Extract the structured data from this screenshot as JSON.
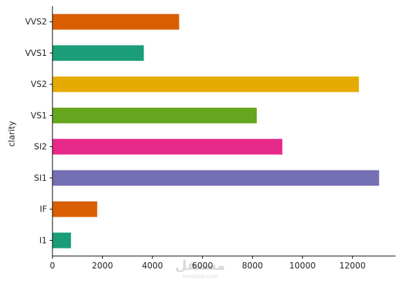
{
  "chart_data": {
    "type": "bar",
    "orientation": "horizontal",
    "categories": [
      "I1",
      "IF",
      "SI1",
      "SI2",
      "VS1",
      "VS2",
      "VVS1",
      "VVS2"
    ],
    "values": [
      741,
      1790,
      13065,
      9194,
      8171,
      12258,
      3655,
      5066
    ],
    "colors": [
      "#1b9e77",
      "#d95f02",
      "#7570b3",
      "#e7298a",
      "#66a61e",
      "#e6ab02",
      "#1b9e77",
      "#d95f02"
    ],
    "ylabel": "clarity",
    "xlabel": "",
    "xlim": [
      0,
      13719
    ],
    "xticks": [
      0,
      2000,
      4000,
      6000,
      8000,
      10000,
      12000
    ],
    "xtick_labels": [
      "0",
      "2000",
      "4000",
      "6000",
      "8000",
      "10000",
      "12000"
    ],
    "grid": false,
    "legend": "none",
    "watermark": "مستقل",
    "watermark_sub": "mostaql.com"
  }
}
